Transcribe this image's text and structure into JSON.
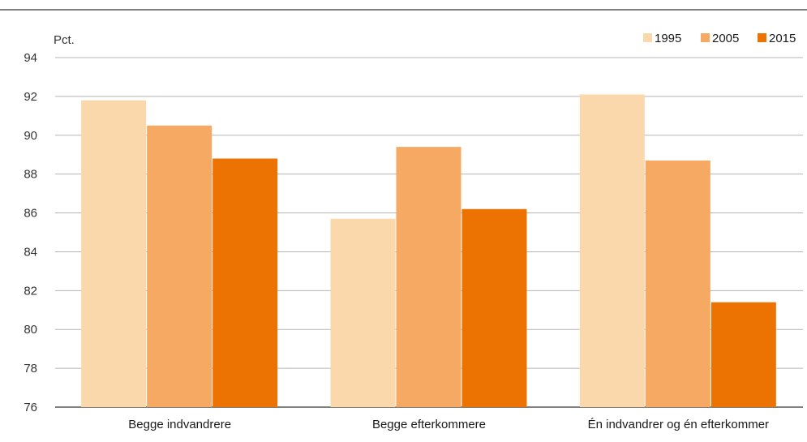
{
  "chart_data": {
    "type": "bar",
    "title": "",
    "ylabel": "Pct.",
    "ylim": [
      76,
      94
    ],
    "yticks": [
      76,
      78,
      80,
      82,
      84,
      86,
      88,
      90,
      92,
      94
    ],
    "categories": [
      "Begge indvandrere",
      "Begge efterkommere",
      "Én indvandrer og én efterkommer"
    ],
    "series": [
      {
        "name": "1995",
        "color": "#FAD8AC",
        "values": [
          91.8,
          85.7,
          92.1
        ]
      },
      {
        "name": "2005",
        "color": "#F5A962",
        "values": [
          90.5,
          89.4,
          88.7
        ]
      },
      {
        "name": "2015",
        "color": "#EC7202",
        "values": [
          88.8,
          86.2,
          81.4
        ]
      }
    ],
    "grid": true,
    "legend_position": "top-right"
  }
}
